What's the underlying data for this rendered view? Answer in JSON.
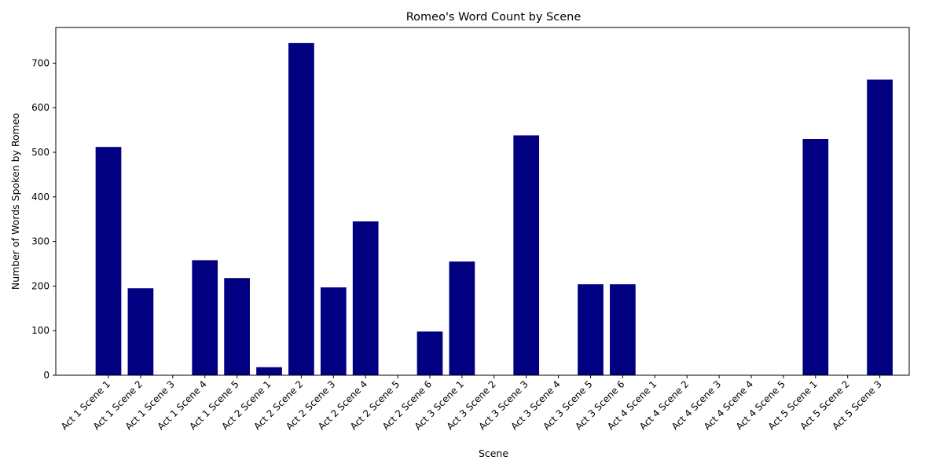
{
  "chart_data": {
    "type": "bar",
    "title": "Romeo's Word Count by Scene",
    "xlabel": "Scene",
    "ylabel": "Number of Words Spoken by Romeo",
    "ylim": [
      0,
      780
    ],
    "yticks": [
      0,
      100,
      200,
      300,
      400,
      500,
      600,
      700
    ],
    "grid": false,
    "bar_color": "#000080",
    "categories": [
      "Act 1 Scene 1",
      "Act 1 Scene 2",
      "Act 1 Scene 3",
      "Act 1 Scene 4",
      "Act 1 Scene 5",
      "Act 2 Scene 1",
      "Act 2 Scene 2",
      "Act 2 Scene 3",
      "Act 2 Scene 4",
      "Act 2 Scene 5",
      "Act 2 Scene 6",
      "Act 3 Scene 1",
      "Act 3 Scene 2",
      "Act 3 Scene 3",
      "Act 3 Scene 4",
      "Act 3 Scene 5",
      "Act 3 Scene 6",
      "Act 4 Scene 1",
      "Act 4 Scene 2",
      "Act 4 Scene 3",
      "Act 4 Scene 4",
      "Act 4 Scene 5",
      "Act 5 Scene 1",
      "Act 5 Scene 2",
      "Act 5 Scene 3"
    ],
    "values": [
      512,
      195,
      0,
      258,
      218,
      18,
      745,
      197,
      345,
      0,
      98,
      255,
      0,
      538,
      0,
      204,
      204,
      0,
      0,
      0,
      0,
      0,
      530,
      0,
      663
    ]
  }
}
